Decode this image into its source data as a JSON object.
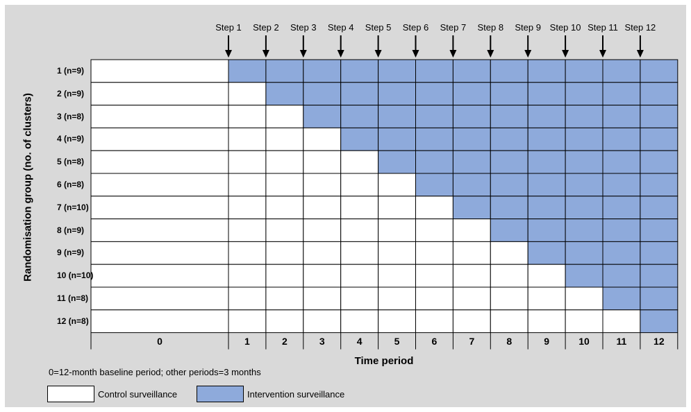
{
  "colors": {
    "control": "#ffffff",
    "intervention": "#8eaadb",
    "background": "#d9d9d9",
    "border": "#000000"
  },
  "steps": [
    "Step 1",
    "Step 2",
    "Step 3",
    "Step 4",
    "Step 5",
    "Step 6",
    "Step 7",
    "Step 8",
    "Step 9",
    "Step 10",
    "Step 11",
    "Step 12"
  ],
  "groups": [
    {
      "label": "1 (n=9)",
      "start_period": 1
    },
    {
      "label": "2 (n=9)",
      "start_period": 2
    },
    {
      "label": "3 (n=8)",
      "start_period": 3
    },
    {
      "label": "4 (n=9)",
      "start_period": 4
    },
    {
      "label": "5 (n=8)",
      "start_period": 5
    },
    {
      "label": "6 (n=8)",
      "start_period": 6
    },
    {
      "label": "7 (n=10)",
      "start_period": 7
    },
    {
      "label": "8 (n=9)",
      "start_period": 8
    },
    {
      "label": "9 (n=9)",
      "start_period": 9
    },
    {
      "label": "10 (n=10)",
      "start_period": 10
    },
    {
      "label": "11 (n=8)",
      "start_period": 11
    },
    {
      "label": "12 (n=8)",
      "start_period": 12
    }
  ],
  "periods": [
    "0",
    "1",
    "2",
    "3",
    "4",
    "5",
    "6",
    "7",
    "8",
    "9",
    "10",
    "11",
    "12"
  ],
  "y_axis_title": "Randomisation group (no. of clusters)",
  "x_axis_title": "Time period",
  "footnote": "0=12-month baseline period; other periods=3 months",
  "legend": {
    "control": "Control surveillance",
    "intervention": "Intervention surveillance"
  }
}
